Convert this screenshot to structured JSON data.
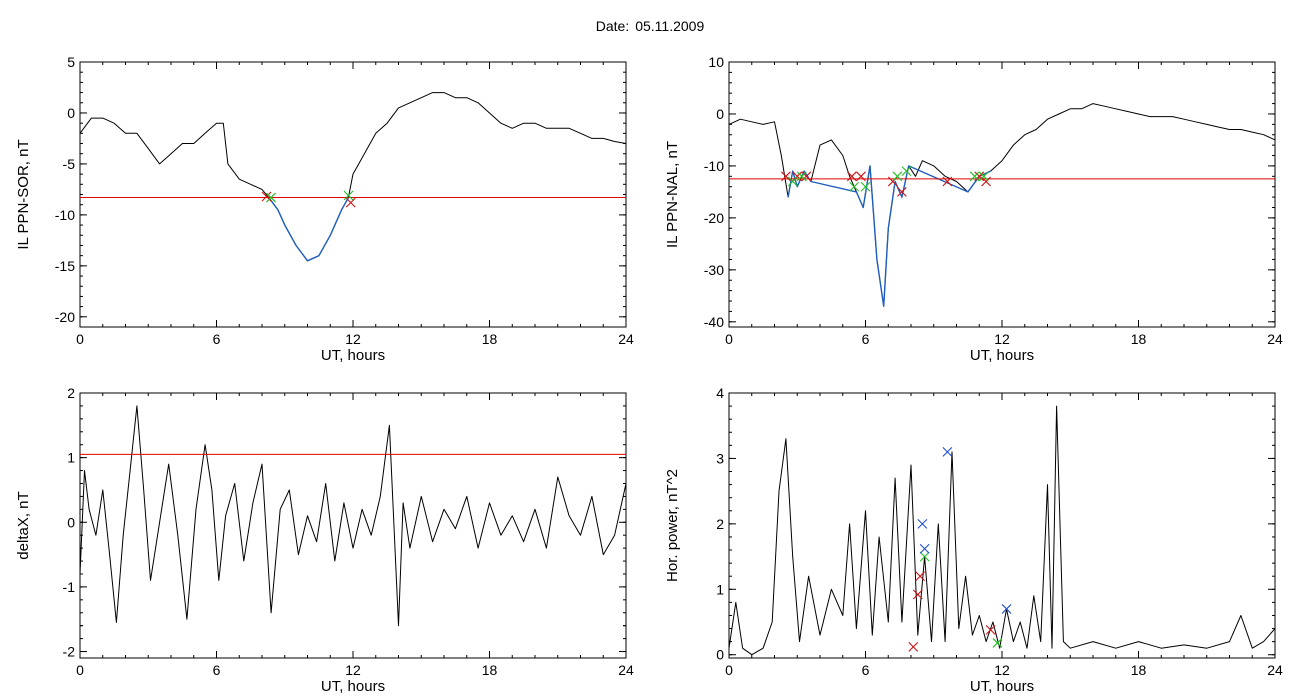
{
  "header": {
    "date_label": "Date:",
    "date_value": "05.11.2009"
  },
  "colors": {
    "trace": "#000000",
    "selected": "#1f5fbf",
    "threshold": "#e00000",
    "marker_red": "#d01010",
    "marker_green": "#20c020",
    "marker_blue": "#2050d0"
  },
  "chart_data": [
    {
      "type": "line",
      "id": "p1",
      "ylabel": "IL PPN-SOR, nT",
      "xlabel": "UT, hours",
      "xlim": [
        0,
        24
      ],
      "ylim": [
        -21,
        5
      ],
      "xticks": [
        0,
        6,
        12,
        18,
        24
      ],
      "yticks": [
        5,
        0,
        -5,
        -10,
        -15,
        -20
      ],
      "threshold": -8.3,
      "series": [
        {
          "role": "trace",
          "color": "#000000",
          "x": [
            0,
            0.5,
            1,
            1.5,
            2,
            2.5,
            3,
            3.5,
            4,
            4.5,
            5,
            5.5,
            6,
            6.3,
            6.5,
            7,
            7.5,
            8,
            8.3,
            8.7,
            9,
            9.5,
            10,
            10.5,
            11,
            11.5,
            11.8,
            12,
            12.5,
            13,
            13.5,
            14,
            14.5,
            15,
            15.5,
            16,
            16.5,
            17,
            17.5,
            18,
            18.5,
            19,
            19.5,
            20,
            20.5,
            21,
            21.5,
            22,
            22.5,
            23,
            23.5,
            24
          ],
          "y": [
            -2,
            -0.5,
            -0.5,
            -1,
            -2,
            -2,
            -3.5,
            -5,
            -4,
            -3,
            -3,
            -2,
            -1,
            -1,
            -5,
            -6.5,
            -7,
            -7.5,
            -8.3,
            -9.5,
            -11,
            -13,
            -14.5,
            -14,
            -12,
            -9.5,
            -8.3,
            -6,
            -4,
            -2,
            -1,
            0.5,
            1,
            1.5,
            2,
            2,
            1.5,
            1.5,
            1,
            0,
            -1,
            -1.5,
            -1,
            -1,
            -1.5,
            -1.5,
            -1.5,
            -2,
            -2.5,
            -2.5,
            -2.8,
            -3
          ]
        },
        {
          "role": "selected",
          "color": "#1f5fbf",
          "x": [
            8.3,
            8.7,
            9,
            9.5,
            10,
            10.5,
            11,
            11.5,
            11.8
          ],
          "y": [
            -8.3,
            -9.5,
            -11,
            -13,
            -14.5,
            -14,
            -12,
            -9.5,
            -8.3
          ]
        }
      ],
      "markers": [
        {
          "color": "#d01010",
          "x": [
            8.2,
            11.9
          ],
          "y": [
            -8.2,
            -8.8
          ]
        },
        {
          "color": "#20c020",
          "x": [
            8.4,
            11.8
          ],
          "y": [
            -8.3,
            -8.1
          ]
        }
      ]
    },
    {
      "type": "line",
      "id": "p2",
      "ylabel": "IL PPN-NAL, nT",
      "xlabel": "UT, hours",
      "xlim": [
        0,
        24
      ],
      "ylim": [
        -41,
        10
      ],
      "xticks": [
        0,
        6,
        12,
        18,
        24
      ],
      "yticks": [
        10,
        0,
        -10,
        -20,
        -30,
        -40
      ],
      "threshold": -12.5,
      "series": [
        {
          "role": "trace",
          "color": "#000000",
          "x": [
            0,
            0.5,
            1,
            1.5,
            2,
            2.3,
            2.6,
            2.8,
            3,
            3.3,
            3.6,
            4,
            4.5,
            5,
            5.3,
            5.6,
            5.9,
            6.2,
            6.5,
            6.8,
            7,
            7.3,
            7.6,
            7.9,
            8.2,
            8.5,
            9,
            9.5,
            10,
            10.5,
            11,
            11.5,
            12,
            12.5,
            13,
            13.5,
            14,
            14.5,
            15,
            15.5,
            16,
            16.5,
            17,
            17.5,
            18,
            18.5,
            19,
            19.5,
            20,
            20.5,
            21,
            21.5,
            22,
            22.5,
            23,
            23.5,
            24
          ],
          "y": [
            -2,
            -1,
            -1.5,
            -2,
            -1.5,
            -8,
            -16,
            -11,
            -14,
            -11,
            -13,
            -6,
            -5,
            -8,
            -12,
            -15,
            -18,
            -10,
            -28,
            -37,
            -22,
            -13,
            -16,
            -10,
            -12,
            -9,
            -10,
            -12,
            -13,
            -15,
            -12,
            -11,
            -9,
            -6,
            -4,
            -3,
            -1,
            0,
            1,
            1,
            2,
            1.5,
            1,
            0.5,
            0,
            -0.5,
            -0.5,
            -0.5,
            -1,
            -1.5,
            -2,
            -2.5,
            -3,
            -3,
            -3.5,
            -4,
            -5
          ]
        },
        {
          "role": "selected",
          "color": "#1f5fbf",
          "x": [
            2.6,
            2.8,
            3,
            3.3,
            3.6,
            5.6,
            5.9,
            6.2,
            6.5,
            6.8,
            7,
            7.3,
            7.6,
            7.9,
            10.5,
            11,
            11.5
          ],
          "y": [
            -16,
            -11,
            -14,
            -11,
            -13,
            -15,
            -18,
            -10,
            -28,
            -37,
            -22,
            -13,
            -16,
            -10,
            -15,
            -12,
            -11
          ]
        }
      ],
      "markers": [
        {
          "color": "#d01010",
          "x": [
            2.5,
            3.0,
            3.4,
            5.4,
            5.8,
            7.2,
            7.6,
            9.6,
            11.0,
            11.3
          ],
          "y": [
            -12,
            -12,
            -12,
            -12,
            -12,
            -13,
            -15,
            -13,
            -12,
            -13
          ]
        },
        {
          "color": "#20c020",
          "x": [
            2.8,
            3.2,
            5.5,
            6.0,
            7.4,
            7.8,
            10.8,
            11.2
          ],
          "y": [
            -13,
            -12,
            -14,
            -14,
            -12,
            -11,
            -12,
            -12
          ]
        }
      ]
    },
    {
      "type": "line",
      "id": "p3",
      "ylabel": "deltaX, nT",
      "xlabel": "UT, hours",
      "xlim": [
        0,
        24
      ],
      "ylim": [
        -2.1,
        2.0
      ],
      "xticks": [
        0,
        6,
        12,
        18,
        24
      ],
      "yticks": [
        2,
        1,
        0,
        -1,
        -2
      ],
      "threshold": 1.05,
      "series": [
        {
          "role": "trace",
          "color": "#000000",
          "x": [
            0,
            0.2,
            0.4,
            0.7,
            1,
            1.3,
            1.6,
            1.9,
            2.2,
            2.5,
            2.8,
            3.1,
            3.5,
            3.9,
            4.3,
            4.7,
            5.1,
            5.5,
            5.8,
            6.1,
            6.4,
            6.8,
            7.2,
            7.6,
            8,
            8.4,
            8.8,
            9.2,
            9.6,
            10,
            10.4,
            10.8,
            11.2,
            11.6,
            12,
            12.4,
            12.8,
            13.2,
            13.6,
            14,
            14.2,
            14.5,
            15,
            15.5,
            16,
            16.5,
            17,
            17.5,
            18,
            18.5,
            19,
            19.5,
            20,
            20.5,
            21,
            21.5,
            22,
            22.5,
            23,
            23.5,
            24
          ],
          "y": [
            -0.8,
            0.8,
            0.2,
            -0.2,
            0.5,
            -0.5,
            -1.55,
            -0.2,
            0.8,
            1.8,
            0.5,
            -0.9,
            0,
            0.9,
            -0.2,
            -1.5,
            0.2,
            1.2,
            0.5,
            -0.9,
            0.1,
            0.6,
            -0.6,
            0.3,
            0.9,
            -1.4,
            0.2,
            0.5,
            -0.5,
            0.1,
            -0.3,
            0.6,
            -0.6,
            0.3,
            -0.4,
            0.2,
            -0.2,
            0.4,
            1.5,
            -1.6,
            0.3,
            -0.4,
            0.4,
            -0.3,
            0.2,
            -0.1,
            0.4,
            -0.4,
            0.3,
            -0.2,
            0.1,
            -0.3,
            0.2,
            -0.4,
            0.7,
            0.1,
            -0.2,
            0.4,
            -0.5,
            -0.2,
            0.6
          ]
        }
      ],
      "markers": []
    },
    {
      "type": "line",
      "id": "p4",
      "ylabel": "Hor. power, nT^2",
      "xlabel": "UT, hours",
      "xlim": [
        0,
        24
      ],
      "ylim": [
        -0.05,
        4.0
      ],
      "xticks": [
        0,
        6,
        12,
        18,
        24
      ],
      "yticks": [
        4,
        3,
        2,
        1,
        0
      ],
      "threshold": null,
      "series": [
        {
          "role": "trace",
          "color": "#000000",
          "x": [
            0,
            0.3,
            0.6,
            1,
            1.5,
            1.9,
            2.2,
            2.5,
            2.8,
            3.1,
            3.5,
            4,
            4.5,
            5,
            5.3,
            5.6,
            6,
            6.3,
            6.6,
            7,
            7.3,
            7.6,
            8,
            8.3,
            8.6,
            8.9,
            9.2,
            9.5,
            9.8,
            10.1,
            10.4,
            10.7,
            11,
            11.3,
            11.6,
            11.9,
            12.2,
            12.5,
            12.8,
            13.1,
            13.4,
            13.7,
            14,
            14.2,
            14.4,
            14.7,
            15,
            16,
            17,
            18,
            19,
            20,
            21,
            22,
            22.5,
            23,
            23.5,
            24
          ],
          "y": [
            0.1,
            0.8,
            0.1,
            0,
            0.1,
            0.5,
            2.5,
            3.3,
            1.5,
            0.2,
            1.2,
            0.3,
            1.0,
            0.6,
            2.0,
            0.4,
            2.2,
            0.3,
            1.8,
            0.5,
            2.7,
            0.5,
            2.9,
            0.3,
            1.5,
            0.2,
            2.0,
            0.2,
            3.1,
            0.4,
            1.2,
            0.3,
            0.6,
            0.2,
            0.5,
            0.1,
            0.7,
            0.2,
            0.5,
            0.1,
            0.9,
            0.2,
            2.6,
            0.1,
            3.8,
            0.2,
            0.1,
            0.2,
            0.1,
            0.2,
            0.1,
            0.15,
            0.1,
            0.2,
            0.6,
            0.1,
            0.2,
            0.4
          ]
        }
      ],
      "markers": [
        {
          "color": "#d01010",
          "x": [
            8.1,
            8.3,
            8.4,
            11.5
          ],
          "y": [
            0.12,
            0.92,
            1.2,
            0.38
          ]
        },
        {
          "color": "#20c020",
          "x": [
            8.6,
            11.8
          ],
          "y": [
            1.5,
            0.18
          ]
        },
        {
          "color": "#2050d0",
          "x": [
            8.5,
            8.6,
            9.6,
            12.2
          ],
          "y": [
            2.0,
            1.62,
            3.1,
            0.7
          ]
        }
      ]
    }
  ]
}
